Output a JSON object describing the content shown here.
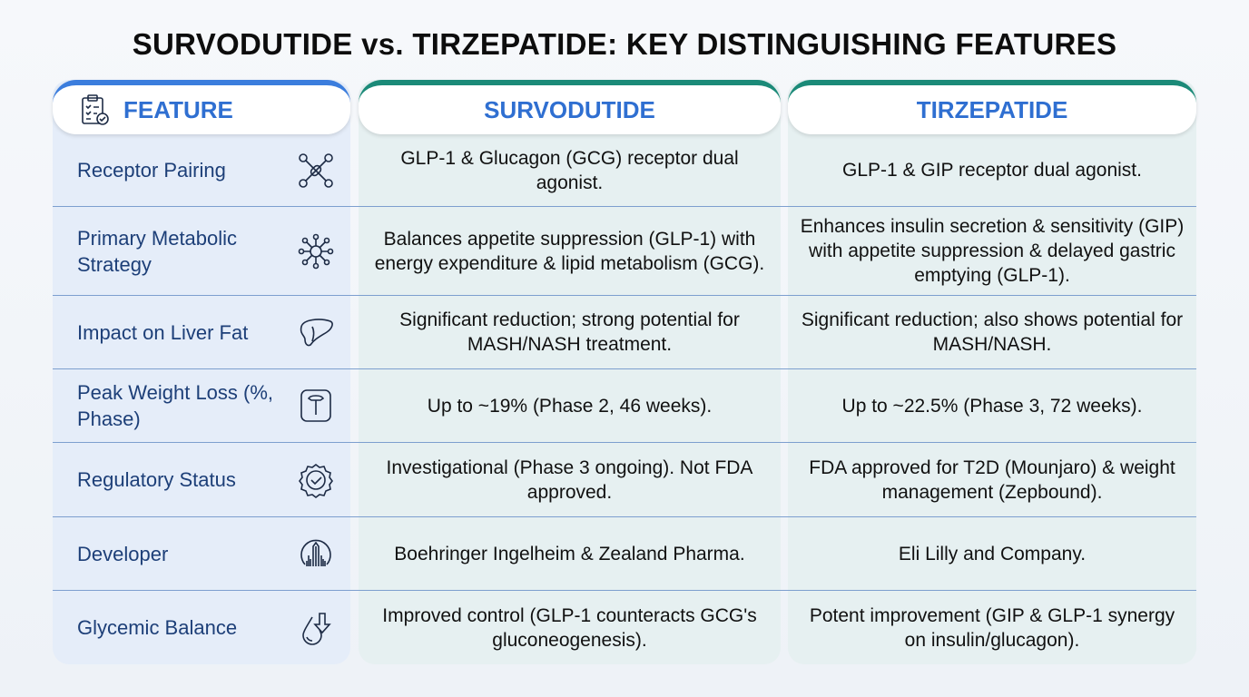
{
  "title": "SURVODUTIDE vs. TIRZEPATIDE: KEY DISTINGUISHING FEATURES",
  "headers": {
    "feature": "FEATURE",
    "survodutide": "SURVODUTIDE",
    "tirzepatide": "TIRZEPATIDE"
  },
  "rows": [
    {
      "feature": "Receptor Pairing",
      "icon": "molecule-icon",
      "survodutide": "GLP-1 & Glucagon (GCG) receptor dual agonist.",
      "tirzepatide": "GLP-1 & GIP receptor dual agonist."
    },
    {
      "feature": "Primary Metabolic Strategy",
      "icon": "network-icon",
      "survodutide": "Balances appetite suppression (GLP-1) with energy expenditure & lipid metabolism (GCG).",
      "tirzepatide": "Enhances insulin secretion & sensitivity (GIP) with appetite suppression & delayed gastric emptying (GLP-1)."
    },
    {
      "feature": "Impact on Liver Fat",
      "icon": "liver-icon",
      "survodutide": "Significant reduction; strong potential for MASH/NASH treatment.",
      "tirzepatide": "Significant reduction; also shows potential for MASH/NASH."
    },
    {
      "feature": "Peak Weight Loss (%, Phase)",
      "icon": "scale-icon",
      "survodutide": "Up to ~19% (Phase 2, 46 weeks).",
      "tirzepatide": "Up to ~22.5% (Phase 3, 72 weeks)."
    },
    {
      "feature": "Regulatory Status",
      "icon": "badge-check-icon",
      "survodutide": "Investigational (Phase 3 ongoing). Not FDA approved.",
      "tirzepatide": "FDA approved for T2D (Mounjaro) & weight management (Zepbound)."
    },
    {
      "feature": "Developer",
      "icon": "building-icon",
      "survodutide": "Boehringer Ingelheim & Zealand Pharma.",
      "tirzepatide": "Eli Lilly and Company."
    },
    {
      "feature": "Glycemic Balance",
      "icon": "drop-down-icon",
      "survodutide": "Improved control (GLP-1 counteracts GCG's gluconeogenesis).",
      "tirzepatide": "Potent improvement (GIP & GLP-1 synergy on insulin/glucagon)."
    }
  ],
  "colors": {
    "feature_accent": "#3b7ddd",
    "drug_accent": "#1b8a78",
    "header_text": "#2f6fd1"
  }
}
